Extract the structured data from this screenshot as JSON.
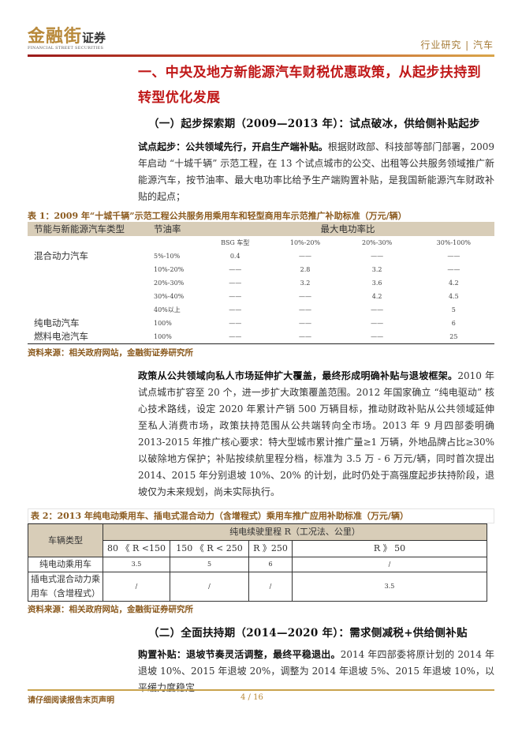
{
  "header": {
    "logo_cn": "金融街",
    "logo_cn2": "证券",
    "logo_en": "FINANCIAL STREET SECURITIES",
    "category": "行业研究 | 汽车"
  },
  "title": {
    "line1": "一、中央及地方新能源汽车财税优惠政策，从起步扶持到",
    "line2": "转型优化发展"
  },
  "section1": {
    "heading": "（一）起步探索期（2009—2013 年）：试点破冰，供给侧补贴起步",
    "p1_bold": "试点起步：公共领域先行，开启生产端补贴。",
    "p1_text": "根据财政部、科技部等部门部署，2009 年启动 “十城千辆” 示范工程，在 13 个试点城市的公交、出租等公共服务领域推广新能源汽车，按节油率、最大电功率比给予生产端购置补贴，是我国新能源汽车财政补贴的起点；",
    "p2_bold": "政策从公共领域向私人市场延伸扩大覆盖，最终形成明确补贴与退坡框架。",
    "p2_text": "2010 年试点城市扩容至 20 个，进一步扩大政策覆盖范围。2012 年国家确立 “纯电驱动” 核心技术路线，设定 2020 年累计产销 500 万辆目标，推动财政补贴从公共领域延伸至私人消费市场，政策扶持范围从公共端转向全市场。2013 年 9 月四部委明确 2013-2015 年推广核心要求：特大型城市累计推广量≥1 万辆，外地品牌占比≥30% 以破除地方保护；补贴按续航里程分档，标准为 3.5 万 - 6 万元/辆，同时首次提出 2014、2015 年分别退坡 10%、20% 的计划，此时仍处于高强度起步扶持阶段，退坡仅为未来规划，尚未实际执行。"
  },
  "table1": {
    "caption": "表 1：2009 年“十城千辆”示范工程公共服务用乘用车和轻型商用车示范推广补助标准（万元/辆）",
    "headers": [
      "节能与新能源汽车类型",
      "节油率",
      "最大电功率比"
    ],
    "subheaders": [
      "BSG 车型",
      "10%-20%",
      "20%-30%",
      "30%-100%"
    ],
    "rows": [
      [
        "混合动力汽车",
        "5%-10%",
        "0.4",
        "——",
        "——",
        "——"
      ],
      [
        "",
        "10%-20%",
        "——",
        "2.8",
        "3.2",
        "——"
      ],
      [
        "",
        "20%-30%",
        "——",
        "3.2",
        "3.6",
        "4.2"
      ],
      [
        "",
        "30%-40%",
        "——",
        "——",
        "4.2",
        "4.5"
      ],
      [
        "",
        "40%以上",
        "——",
        "——",
        "——",
        "5"
      ],
      [
        "纯电动汽车",
        "100%",
        "——",
        "——",
        "——",
        "6"
      ],
      [
        "燃料电池汽车",
        "100%",
        "——",
        "——",
        "——",
        "25"
      ]
    ],
    "source": "资料来源：相关政府网站，金融街证券研究所"
  },
  "table2": {
    "caption": "表 2：2013 年纯电动乘用车、插电式混合动力（含增程式）乘用车推广应用补助标准（万元/辆）",
    "col0": "车辆类型",
    "group": "纯电续驶里程 R（工况法、公里）",
    "ranges": [
      "80 《 R <150",
      "150 《 R < 250",
      "R 》250",
      "R 》 50"
    ],
    "rows": [
      [
        "纯电动乘用车",
        "3.5",
        "5",
        "6",
        "/"
      ],
      [
        "插电式混合动力乘用车（含增程式）",
        "/",
        "/",
        "/",
        "3.5"
      ]
    ],
    "source": "资料来源：相关政府网站，金融街证券研究所"
  },
  "section2": {
    "heading": "（二）全面扶持期（2014—2020 年）：需求侧减税+供给侧补贴",
    "p_bold": "购置补贴：退坡节奏灵活调整，最终平稳退出。",
    "p_text": "2014 年四部委将原计划的 2014 年退坡 10%、2015 年退坡 20%，调整为 2014 年退坡 5%、2015 年退坡 10%，以平缓力度稳定"
  },
  "footer": {
    "disclaimer": "请仔细阅读报告末页声明",
    "page": "4 / 16"
  }
}
